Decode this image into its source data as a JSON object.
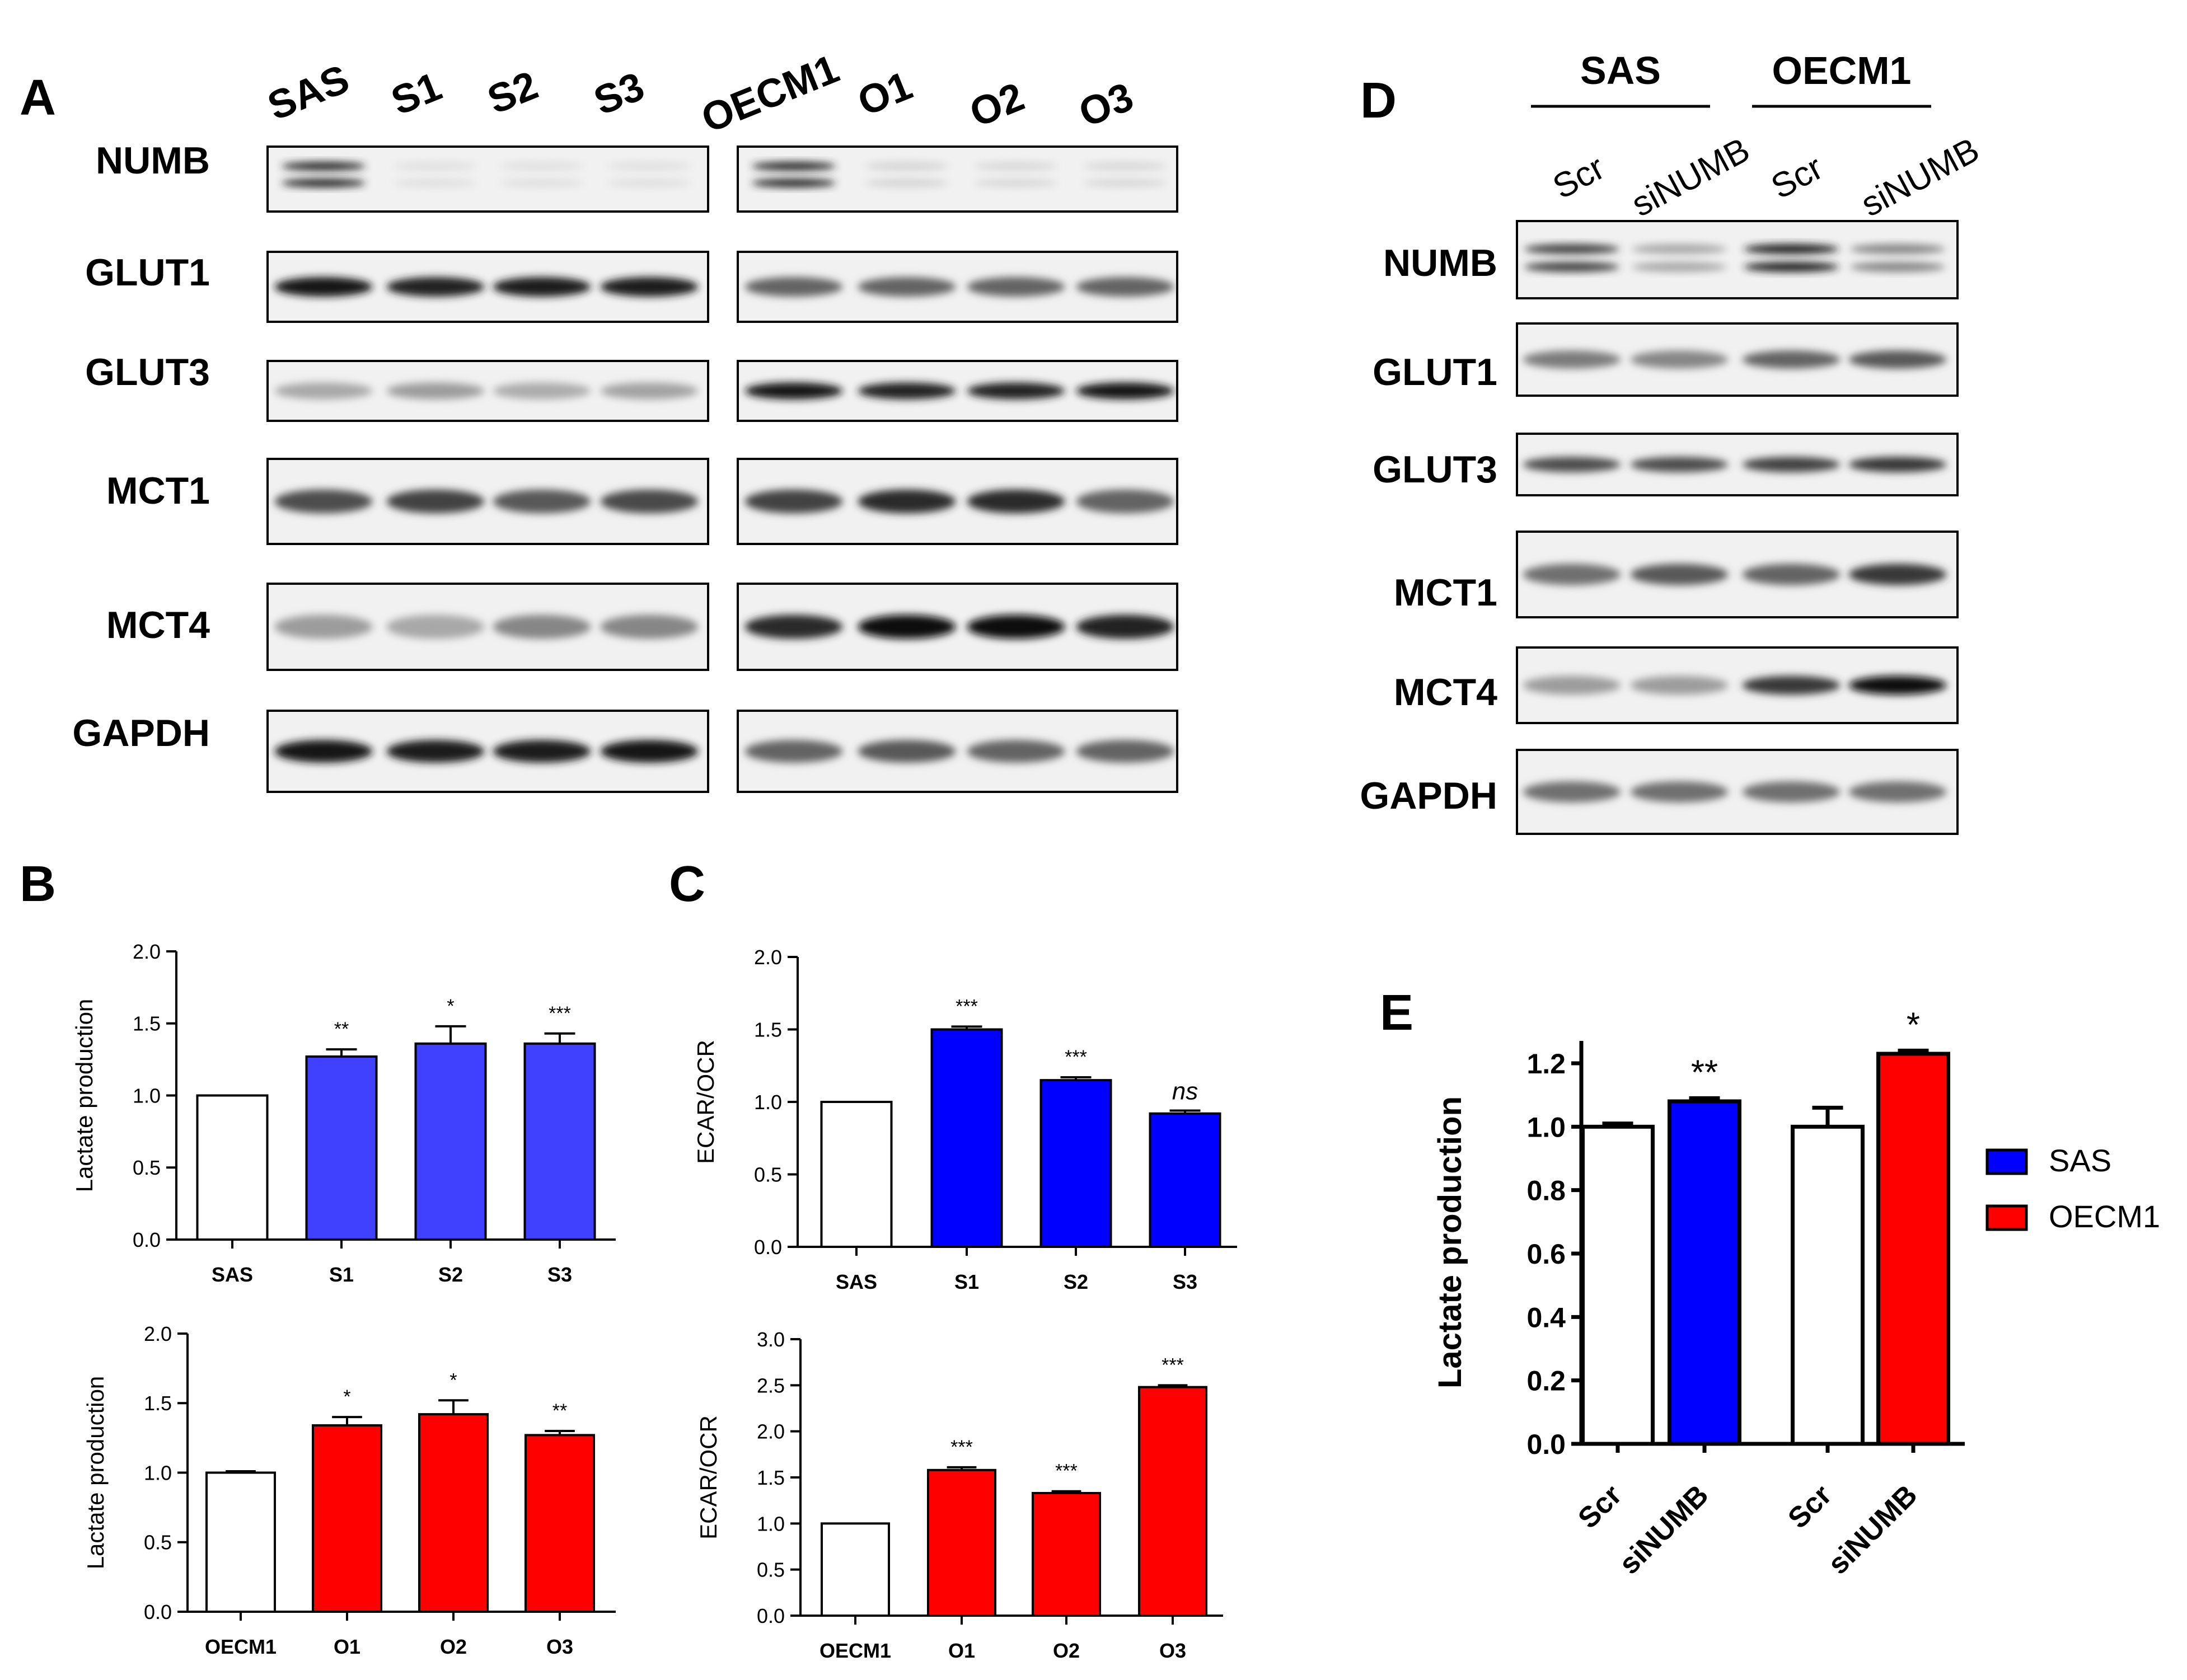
{
  "panel_letters": {
    "a": "A",
    "b": "B",
    "c": "C",
    "d": "D",
    "e": "E"
  },
  "blots": {
    "panel_a": {
      "groups": [
        {
          "parent": "SAS",
          "lanes": [
            "SAS",
            "S1",
            "S2",
            "S3"
          ]
        },
        {
          "parent": "OECM1",
          "lanes": [
            "OECM1",
            "O1",
            "O2",
            "O3"
          ]
        }
      ],
      "rows": [
        "NUMB",
        "GLUT1",
        "GLUT3",
        "MCT1",
        "MCT4",
        "GAPDH"
      ],
      "intensity": {
        "NUMB": [
          [
            0.85,
            0.05,
            0.05,
            0.05
          ],
          [
            0.85,
            0.1,
            0.08,
            0.08
          ]
        ],
        "GLUT1": [
          [
            0.95,
            0.9,
            0.92,
            0.93
          ],
          [
            0.6,
            0.6,
            0.6,
            0.6
          ]
        ],
        "GLUT3": [
          [
            0.3,
            0.35,
            0.28,
            0.32
          ],
          [
            0.95,
            0.9,
            0.9,
            0.95
          ]
        ],
        "MCT1": [
          [
            0.7,
            0.75,
            0.65,
            0.72
          ],
          [
            0.75,
            0.85,
            0.85,
            0.6
          ]
        ],
        "MCT4": [
          [
            0.35,
            0.3,
            0.45,
            0.45
          ],
          [
            0.85,
            1.0,
            1.0,
            0.9
          ]
        ],
        "GAPDH": [
          [
            0.95,
            0.93,
            0.93,
            0.95
          ],
          [
            0.6,
            0.65,
            0.6,
            0.6
          ]
        ]
      }
    },
    "panel_d": {
      "groups": [
        {
          "parent": "SAS",
          "lanes": [
            "Scr",
            "siNUMB"
          ]
        },
        {
          "parent": "OECM1",
          "lanes": [
            "Scr",
            "siNUMB"
          ]
        }
      ],
      "rows": [
        "NUMB",
        "GLUT1",
        "GLUT3",
        "MCT1",
        "MCT4",
        "GAPDH"
      ],
      "intensity": {
        "NUMB": [
          0.75,
          0.3,
          0.9,
          0.45
        ],
        "GLUT1": [
          0.5,
          0.45,
          0.6,
          0.65
        ],
        "GLUT3": [
          0.7,
          0.7,
          0.75,
          0.8
        ],
        "MCT1": [
          0.55,
          0.65,
          0.6,
          0.8
        ],
        "MCT4": [
          0.35,
          0.35,
          0.8,
          1.0
        ],
        "GAPDH": [
          0.55,
          0.55,
          0.55,
          0.55
        ]
      }
    }
  },
  "chart_data": [
    {
      "id": "B_top",
      "type": "bar",
      "categories": [
        "SAS",
        "S1",
        "S2",
        "S3"
      ],
      "values": [
        1.0,
        1.27,
        1.36,
        1.36
      ],
      "errors": [
        0,
        0.05,
        0.12,
        0.07
      ],
      "significance": [
        "",
        "**",
        "*",
        "***"
      ],
      "colors": [
        "#ffffff",
        "#4040ff",
        "#4040ff",
        "#4040ff"
      ],
      "ylabel": "Lactate production",
      "ylim": [
        0,
        2.0
      ],
      "yticks": [
        "0.0",
        "0.5",
        "1.0",
        "1.5",
        "2.0"
      ]
    },
    {
      "id": "B_bottom",
      "type": "bar",
      "categories": [
        "OECM1",
        "O1",
        "O2",
        "O3"
      ],
      "values": [
        1.0,
        1.34,
        1.42,
        1.27
      ],
      "errors": [
        0.01,
        0.06,
        0.1,
        0.03
      ],
      "significance": [
        "",
        "*",
        "*",
        "**"
      ],
      "colors": [
        "#ffffff",
        "#ff0000",
        "#ff0000",
        "#ff0000"
      ],
      "ylabel": "Lactate production",
      "ylim": [
        0,
        2.0
      ],
      "yticks": [
        "0.0",
        "0.5",
        "1.0",
        "1.5",
        "2.0"
      ]
    },
    {
      "id": "C_top",
      "type": "bar",
      "categories": [
        "SAS",
        "S1",
        "S2",
        "S3"
      ],
      "values": [
        1.0,
        1.5,
        1.15,
        0.92
      ],
      "errors": [
        0,
        0.02,
        0.02,
        0.02
      ],
      "significance": [
        "",
        "***",
        "***",
        "ns"
      ],
      "colors": [
        "#ffffff",
        "#0000ff",
        "#0000ff",
        "#0000ff"
      ],
      "ylabel": "ECAR/OCR",
      "ylim": [
        0,
        2.0
      ],
      "yticks": [
        "0.0",
        "0.5",
        "1.0",
        "1.5",
        "2.0"
      ]
    },
    {
      "id": "C_bottom",
      "type": "bar",
      "categories": [
        "OECM1",
        "O1",
        "O2",
        "O3"
      ],
      "values": [
        1.0,
        1.58,
        1.33,
        2.48
      ],
      "errors": [
        0,
        0.03,
        0.02,
        0.02
      ],
      "significance": [
        "",
        "***",
        "***",
        "***"
      ],
      "colors": [
        "#ffffff",
        "#ff0000",
        "#ff0000",
        "#ff0000"
      ],
      "ylabel": "ECAR/OCR",
      "ylim": [
        0,
        3.0
      ],
      "yticks": [
        "0.0",
        "0.5",
        "1.0",
        "1.5",
        "2.0",
        "2.5",
        "3.0"
      ]
    },
    {
      "id": "E",
      "type": "bar",
      "categories": [
        "Scr",
        "siNUMB",
        "Scr",
        "siNUMB"
      ],
      "values": [
        1.0,
        1.08,
        1.0,
        1.23
      ],
      "errors": [
        0.01,
        0.01,
        0.06,
        0.01
      ],
      "significance": [
        "",
        "**",
        "",
        "*"
      ],
      "colors": [
        "#ffffff",
        "#0000ff",
        "#ffffff",
        "#ff0000"
      ],
      "ylabel": "Lactate production",
      "ylim": [
        0,
        1.3
      ],
      "yticks": [
        "0.0",
        "0.2",
        "0.4",
        "0.6",
        "0.8",
        "1.0",
        "1.2"
      ],
      "legend": [
        {
          "name": "SAS",
          "color": "#0000ff"
        },
        {
          "name": "OECM1",
          "color": "#ff0000"
        }
      ],
      "legend_position": "right"
    }
  ]
}
